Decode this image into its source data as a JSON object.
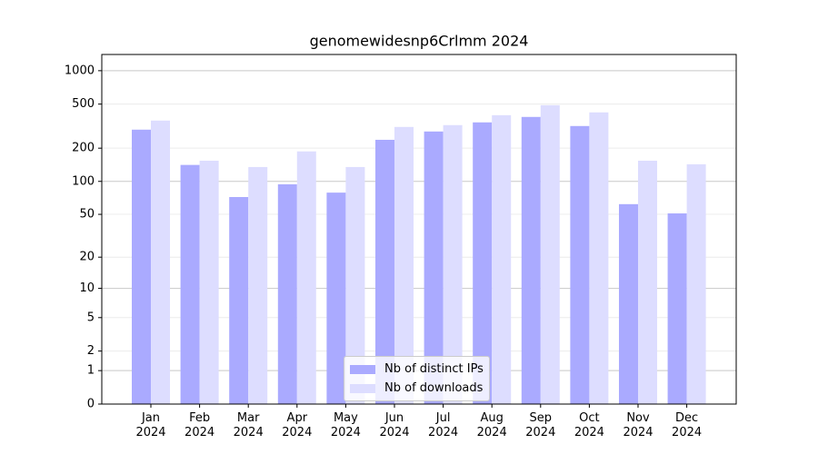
{
  "chart_data": {
    "type": "bar",
    "title": "genomewidesnp6Crlmm 2024",
    "categories": [
      "Jan\n2024",
      "Feb\n2024",
      "Mar\n2024",
      "Apr\n2024",
      "May\n2024",
      "Jun\n2024",
      "Jul\n2024",
      "Aug\n2024",
      "Sep\n2024",
      "Oct\n2024",
      "Nov\n2024",
      "Dec\n2024"
    ],
    "series": [
      {
        "name": "Nb of distinct IPs",
        "color": "#aaaaff",
        "values": [
          294,
          141,
          72,
          94,
          79,
          238,
          283,
          342,
          383,
          317,
          62,
          51
        ]
      },
      {
        "name": "Nb of downloads",
        "color": "#ddddff",
        "values": [
          355,
          154,
          135,
          187,
          135,
          311,
          323,
          397,
          489,
          421,
          154,
          143
        ]
      }
    ],
    "yscale": "log1p",
    "ylim": [
      0,
      1400
    ],
    "yticks": [
      0,
      1,
      2,
      5,
      10,
      20,
      50,
      100,
      200,
      500,
      1000
    ],
    "grid": true,
    "legend": "lower center"
  }
}
